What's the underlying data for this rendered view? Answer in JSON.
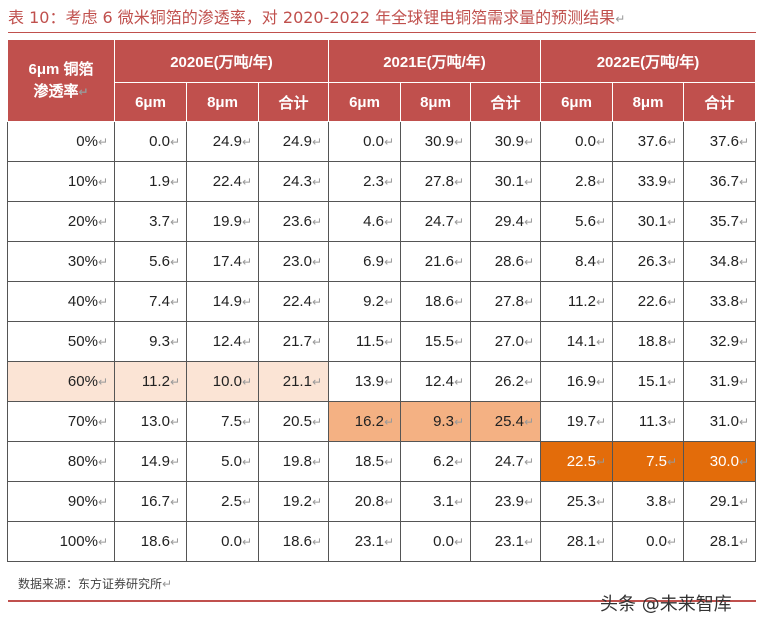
{
  "title": "表 10：考虑 6 微米铜箔的渗透率，对 2020-2022 年全球锂电铜箔需求量的预测结果",
  "return_mark": "↵",
  "header": {
    "row_label_line1": "6μm 铜箔",
    "row_label_line2": "渗透率",
    "groups": [
      "2020E(万吨/年)",
      "2021E(万吨/年)",
      "2022E(万吨/年)"
    ],
    "subcols": [
      "6μm",
      "8μm",
      "合计"
    ]
  },
  "rows": [
    {
      "label": "0%",
      "values": [
        "0.0",
        "24.9",
        "24.9",
        "0.0",
        "30.9",
        "30.9",
        "0.0",
        "37.6",
        "37.6"
      ]
    },
    {
      "label": "10%",
      "values": [
        "1.9",
        "22.4",
        "24.3",
        "2.3",
        "27.8",
        "30.1",
        "2.8",
        "33.9",
        "36.7"
      ]
    },
    {
      "label": "20%",
      "values": [
        "3.7",
        "19.9",
        "23.6",
        "4.6",
        "24.7",
        "29.4",
        "5.6",
        "30.1",
        "35.7"
      ]
    },
    {
      "label": "30%",
      "values": [
        "5.6",
        "17.4",
        "23.0",
        "6.9",
        "21.6",
        "28.6",
        "8.4",
        "26.3",
        "34.8"
      ]
    },
    {
      "label": "40%",
      "values": [
        "7.4",
        "14.9",
        "22.4",
        "9.2",
        "18.6",
        "27.8",
        "11.2",
        "22.6",
        "33.8"
      ]
    },
    {
      "label": "50%",
      "values": [
        "9.3",
        "12.4",
        "21.7",
        "11.5",
        "15.5",
        "27.0",
        "14.1",
        "18.8",
        "32.9"
      ]
    },
    {
      "label": "60%",
      "values": [
        "11.2",
        "10.0",
        "21.1",
        "13.9",
        "12.4",
        "26.2",
        "16.9",
        "15.1",
        "31.9"
      ]
    },
    {
      "label": "70%",
      "values": [
        "13.0",
        "7.5",
        "20.5",
        "16.2",
        "9.3",
        "25.4",
        "19.7",
        "11.3",
        "31.0"
      ]
    },
    {
      "label": "80%",
      "values": [
        "14.9",
        "5.0",
        "19.8",
        "18.5",
        "6.2",
        "24.7",
        "22.5",
        "7.5",
        "30.0"
      ]
    },
    {
      "label": "90%",
      "values": [
        "16.7",
        "2.5",
        "19.2",
        "20.8",
        "3.1",
        "23.9",
        "25.3",
        "3.8",
        "29.1"
      ]
    },
    {
      "label": "100%",
      "values": [
        "18.6",
        "0.0",
        "18.6",
        "23.1",
        "0.0",
        "23.1",
        "28.1",
        "0.0",
        "28.1"
      ]
    }
  ],
  "highlights": [
    {
      "row": 6,
      "cols": [
        0,
        1,
        2,
        3
      ],
      "color": "#fbe4d5"
    },
    {
      "row": 7,
      "cols": [
        4,
        5,
        6
      ],
      "color": "#f4b183"
    },
    {
      "row": 8,
      "cols": [
        7,
        8,
        9
      ],
      "color": "#e36c0a"
    }
  ],
  "source": "数据来源：东方证券研究所",
  "watermark": "头条 @未来智库"
}
